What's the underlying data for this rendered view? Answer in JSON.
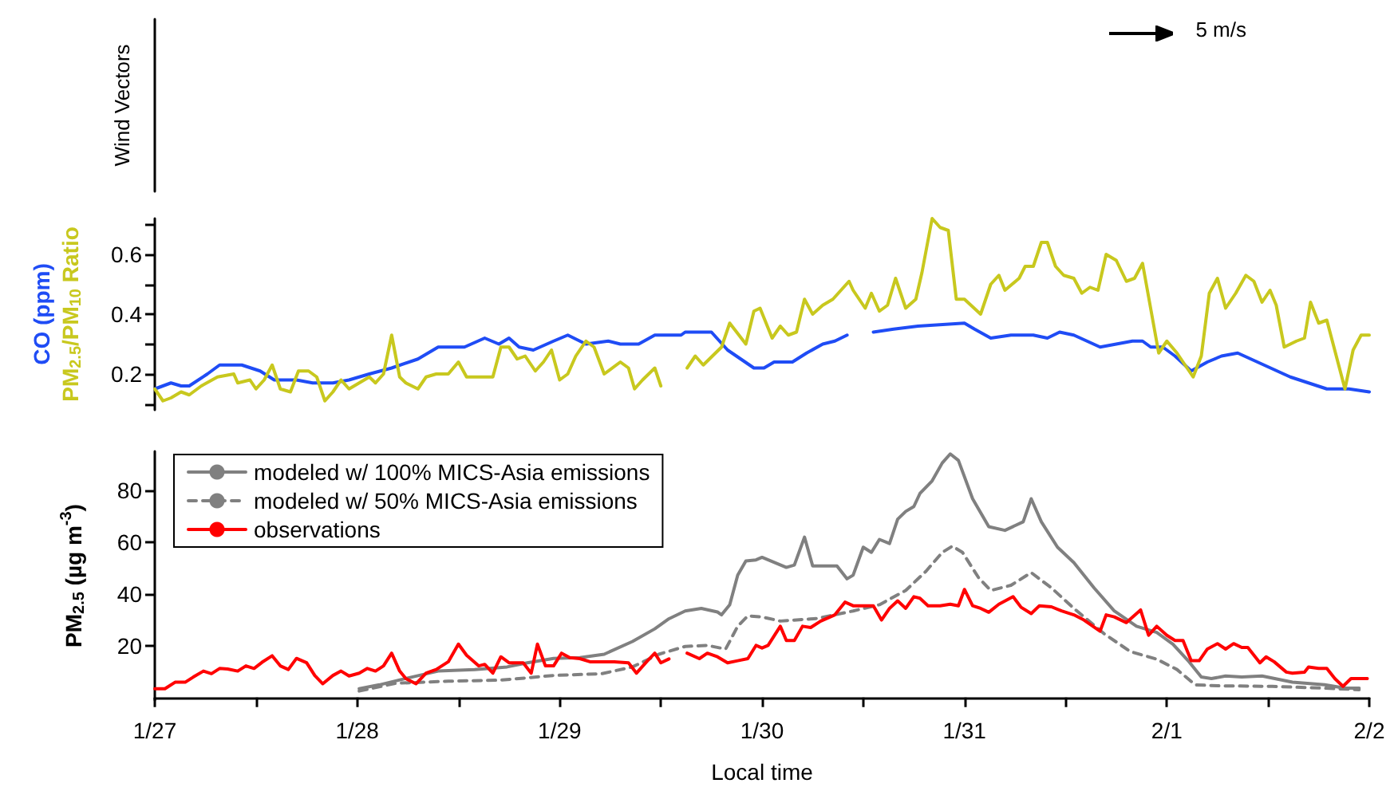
{
  "chart_data": [
    {
      "type": "other",
      "ylabel": "Wind Vectors",
      "annotations": [
        "5 m/s"
      ]
    },
    {
      "type": "line",
      "xlim": [
        "--01-27",
        "--02-02"
      ],
      "ylim": [
        0.08,
        0.72
      ],
      "tick_labels": "y",
      "xticks": [
        {
          "value": "--01-27",
          "label": "1/27"
        },
        {
          "value": "--01-28",
          "label": "1/28"
        },
        {
          "value": "--01-29",
          "label": "1/29"
        },
        {
          "value": "--01-30",
          "label": "1/30"
        },
        {
          "value": "--01-31",
          "label": "1/31"
        },
        {
          "value": "--02-01",
          "label": "2/1"
        },
        {
          "value": "--02-02",
          "label": "2/2"
        }
      ],
      "yticks": [
        {
          "value": 0.1,
          "label": null
        },
        0.2,
        {
          "value": 0.3,
          "label": null
        },
        0.4,
        {
          "value": 0.5,
          "label": null
        },
        0.6,
        {
          "value": 0.7,
          "label": null
        }
      ],
      "series": [
        {
          "name": "CO (ppm)",
          "color": "#1f4cf5",
          "x": [
            "--01-27T00:00",
            "--01-27T01:55",
            "--01-27T03:07",
            "--01-27T04:05",
            "--01-27T06:14",
            "--01-27T07:41",
            "--01-27T10:19",
            "--01-27T12:29",
            "--01-27T14:10",
            "--01-27T16:48",
            "--01-27T18:43",
            "--01-27T21:07",
            "--01-27T23:02",
            "--01-28T01:26",
            "--01-28T04:05",
            "--01-28T07:12",
            "--01-28T09:36",
            "--01-28T12:43",
            "--01-28T15:07",
            "--01-28T16:48",
            "--01-28T18:00",
            "--01-28T19:12",
            "--01-28T20:53",
            "--01-28T23:17",
            "--01-29T00:58",
            "--01-29T03:07",
            "--01-29T05:46",
            "--01-29T07:12",
            "--01-29T09:22",
            "--01-29T11:17",
            "--01-29T14:24",
            "--01-29T14:53",
            "--01-29T18:00",
            "--01-29T19:55",
            "--01-29T23:02",
            "--01-30T00:14",
            "--01-30T01:26",
            "--01-30T03:36",
            "--01-30T05:17",
            "--01-30T07:12",
            "--01-30T08:38",
            "--01-30T10:05",
            "--01-30T11:31",
            "--01-30T13:12",
            "--01-30T15:36",
            "--01-30T18:29",
            "--01-31T00:00",
            "--01-31T01:12",
            "--01-31T03:07",
            "--01-31T05:31",
            "--01-31T08:10",
            "--01-31T09:50",
            "--01-31T11:17",
            "--01-31T12:58",
            "--01-31T16:05",
            "--01-31T18:00",
            "--01-31T19:55",
            "--01-31T21:07",
            "--01-31T22:05",
            "--01-31T23:31",
            "--02-01T00:58",
            "--02-01T02:53",
            "--02-01T04:48",
            "--02-01T06:29",
            "--02-01T08:24",
            "--02-01T11:31",
            "--02-01T14:38",
            "--02-01T18:58",
            "--02-01T21:36",
            "--02-02T00:00"
          ],
          "values": [
            0.15,
            0.17,
            0.16,
            0.16,
            0.2,
            0.23,
            0.23,
            0.21,
            0.18,
            0.18,
            0.17,
            0.17,
            0.18,
            0.2,
            0.22,
            0.25,
            0.29,
            0.29,
            0.32,
            0.3,
            0.32,
            0.29,
            0.28,
            0.31,
            0.33,
            0.3,
            0.31,
            0.3,
            0.3,
            0.33,
            0.33,
            0.34,
            0.34,
            0.28,
            0.22,
            0.22,
            0.24,
            0.24,
            0.27,
            0.3,
            0.31,
            0.33,
            null,
            0.34,
            0.35,
            0.36,
            0.37,
            0.35,
            0.32,
            0.33,
            0.33,
            0.32,
            0.34,
            0.33,
            0.29,
            0.3,
            0.31,
            0.31,
            0.29,
            0.29,
            0.26,
            0.21,
            0.24,
            0.26,
            0.27,
            0.23,
            0.19,
            0.15,
            0.15,
            0.14
          ]
        },
        {
          "name": "PM$_{2.5}$/PM$_{10}$ Ratio",
          "color": "#c8c81e",
          "x": [
            "--01-27T00:00",
            "--01-27T00:58",
            "--01-27T01:55",
            "--01-27T03:07",
            "--01-27T04:05",
            "--01-27T05:31",
            "--01-27T07:26",
            "--01-27T09:22",
            "--01-27T09:50",
            "--01-27T11:17",
            "--01-27T12:00",
            "--01-27T12:58",
            "--01-27T13:55",
            "--01-27T14:53",
            "--01-27T16:05",
            "--01-27T17:02",
            "--01-27T18:14",
            "--01-27T19:12",
            "--01-27T20:10",
            "--01-27T21:07",
            "--01-27T22:05",
            "--01-27T23:02",
            "--01-28T00:14",
            "--01-28T01:26",
            "--01-28T02:10",
            "--01-28T03:07",
            "--01-28T04:05",
            "--01-28T05:02",
            "--01-28T05:46",
            "--01-28T07:12",
            "--01-28T08:10",
            "--01-28T09:22",
            "--01-28T10:48",
            "--01-28T12:00",
            "--01-28T12:58",
            "--01-28T14:24",
            "--01-28T15:07",
            "--01-28T16:05",
            "--01-28T17:02",
            "--01-28T18:00",
            "--01-28T18:58",
            "--01-28T19:55",
            "--01-28T21:07",
            "--01-28T22:05",
            "--01-28T23:02",
            "--01-29T00:00",
            "--01-29T00:58",
            "--01-29T01:55",
            "--01-29T03:07",
            "--01-29T04:05",
            "--01-29T05:17",
            "--01-29T07:12",
            "--01-29T08:10",
            "--01-29T08:53",
            "--01-29T09:50",
            "--01-29T11:17",
            "--01-29T12:00",
            "--01-29T13:41",
            "--01-29T15:07",
            "--01-29T16:05",
            "--01-29T17:02",
            "--01-29T19:12",
            "--01-29T20:10",
            "--01-29T22:05",
            "--01-29T23:02",
            "--01-29T23:46",
            "--01-30T01:12",
            "--01-30T02:10",
            "--01-30T03:07",
            "--01-30T04:05",
            "--01-30T05:02",
            "--01-30T06:00",
            "--01-30T07:12",
            "--01-30T08:24",
            "--01-30T10:19",
            "--01-30T10:48",
            "--01-30T12:14",
            "--01-30T12:58",
            "--01-30T13:55",
            "--01-30T14:53",
            "--01-30T15:50",
            "--01-30T17:02",
            "--01-30T18:14",
            "--01-30T18:58",
            "--01-30T20:10",
            "--01-30T21:07",
            "--01-30T22:05",
            "--01-30T23:02",
            "--01-31T00:00",
            "--01-31T01:55",
            "--01-31T03:07",
            "--01-31T04:05",
            "--01-31T04:48",
            "--01-31T06:29",
            "--01-31T07:12",
            "--01-31T08:10",
            "--01-31T09:07",
            "--01-31T09:50",
            "--01-31T10:48",
            "--01-31T11:46",
            "--01-31T12:58",
            "--01-31T13:55",
            "--01-31T14:53",
            "--01-31T15:50",
            "--01-31T16:48",
            "--01-31T18:00",
            "--01-31T19:12",
            "--01-31T20:10",
            "--01-31T21:07",
            "--01-31T23:02",
            "--02-01T00:00",
            "--02-01T01:12",
            "--02-01T03:07",
            "--02-01T04:05",
            "--02-01T05:02",
            "--02-01T06:00",
            "--02-01T06:58",
            "--02-01T08:10",
            "--02-01T09:22",
            "--02-01T10:19",
            "--02-01T11:17",
            "--02-01T12:14",
            "--02-01T12:58",
            "--02-01T13:55",
            "--02-01T15:22",
            "--02-01T16:19",
            "--02-01T17:02",
            "--02-01T18:00",
            "--02-01T18:58",
            "--02-01T21:07",
            "--02-01T22:05",
            "--02-01T23:02",
            "--02-02T00:00"
          ],
          "values": [
            0.15,
            0.11,
            0.12,
            0.14,
            0.13,
            0.16,
            0.19,
            0.2,
            0.17,
            0.18,
            0.15,
            0.18,
            0.23,
            0.15,
            0.14,
            0.21,
            0.21,
            0.19,
            0.11,
            0.14,
            0.18,
            0.15,
            0.17,
            0.19,
            0.17,
            0.2,
            0.33,
            0.19,
            0.17,
            0.15,
            0.19,
            0.2,
            0.2,
            0.24,
            0.19,
            0.19,
            0.19,
            0.19,
            0.29,
            0.29,
            0.25,
            0.26,
            0.21,
            0.24,
            0.28,
            0.18,
            0.2,
            0.26,
            0.31,
            0.29,
            0.2,
            0.24,
            0.22,
            0.15,
            0.18,
            0.22,
            0.16,
            null,
            0.22,
            0.26,
            0.23,
            0.29,
            0.37,
            0.3,
            0.41,
            0.42,
            0.32,
            0.36,
            0.33,
            0.34,
            0.45,
            0.4,
            0.43,
            0.45,
            0.51,
            0.48,
            0.42,
            0.47,
            0.41,
            0.43,
            0.52,
            0.42,
            0.45,
            0.54,
            0.72,
            0.69,
            0.68,
            0.45,
            0.45,
            0.4,
            0.5,
            0.53,
            0.48,
            0.52,
            0.56,
            0.56,
            0.64,
            0.64,
            0.56,
            0.53,
            0.52,
            0.47,
            0.49,
            0.48,
            0.6,
            0.58,
            0.51,
            0.52,
            0.57,
            0.27,
            0.31,
            0.27,
            0.19,
            0.26,
            0.47,
            0.52,
            0.42,
            0.47,
            0.53,
            0.51,
            0.44,
            0.48,
            0.43,
            0.29,
            0.31,
            0.32,
            0.44,
            0.37,
            0.38,
            0.15,
            0.28,
            0.33,
            0.33
          ]
        }
      ]
    },
    {
      "type": "line",
      "xlabel": "Local time",
      "ylabel": "PM$_{2.5}$ (µg m$^{-3}$)",
      "xlim": [
        "--01-27",
        "--02-02"
      ],
      "ylim": [
        -1,
        95
      ],
      "xticks": [
        {
          "value": "--01-27",
          "label": "1/27"
        },
        {
          "value": "--01-27T12:00",
          "label": null
        },
        {
          "value": "--01-28",
          "label": "1/28"
        },
        {
          "value": "--01-28T12:00",
          "label": null
        },
        {
          "value": "--01-29",
          "label": "1/29"
        },
        {
          "value": "--01-29T12:00",
          "label": null
        },
        {
          "value": "--01-30",
          "label": "1/30"
        },
        {
          "value": "--01-30T12:00",
          "label": null
        },
        {
          "value": "--01-31",
          "label": "1/31"
        },
        {
          "value": "--01-31T12:00",
          "label": null
        },
        {
          "value": "--02-01",
          "label": "2/1"
        },
        {
          "value": "--02-01T12:00",
          "label": null
        },
        {
          "value": "--02-02",
          "label": "2/2"
        }
      ],
      "yticks": [
        20,
        40,
        60,
        80
      ],
      "legend": "top left",
      "series": [
        {
          "name": "modeled w/ 100% MICS-Asia emissions",
          "color": "#808080",
          "line_style": "solid",
          "x": [
            "--01-28T00:14",
            "--01-28T02:38",
            "--01-28T06:29",
            "--01-28T09:36",
            "--01-28T13:55",
            "--01-28T17:46",
            "--01-28T20:10",
            "--01-28T23:17",
            "--01-29T02:24",
            "--01-29T05:17",
            "--01-29T08:38",
            "--01-29T11:17",
            "--01-29T12:58",
            "--01-29T14:53",
            "--01-29T16:48",
            "--01-29T18:43",
            "--01-29T19:12",
            "--01-29T20:10",
            "--01-29T21:07",
            "--01-29T22:05",
            "--01-29T23:17",
            "--01-30T00:00",
            "--01-30T02:53",
            "--01-30T03:50",
            "--01-30T05:02",
            "--01-30T06:00",
            "--01-30T08:53",
            "--01-30T10:05",
            "--01-30T10:48",
            "--01-30T12:00",
            "--01-30T12:58",
            "--01-30T13:55",
            "--01-30T15:07",
            "--01-30T16:05",
            "--01-30T17:02",
            "--01-30T18:00",
            "--01-30T18:43",
            "--01-30T20:10",
            "--01-30T21:22",
            "--01-30T22:19",
            "--01-30T23:17",
            "--01-31T00:58",
            "--01-31T02:53",
            "--01-31T04:48",
            "--01-31T06:58",
            "--01-31T07:55",
            "--01-31T09:07",
            "--01-31T11:02",
            "--01-31T12:58",
            "--01-31T15:22",
            "--01-31T17:46",
            "--01-31T20:24",
            "--01-31T22:48",
            "--02-01T00:43",
            "--02-01T02:38",
            "--02-01T04:05",
            "--02-01T05:17",
            "--02-01T06:58",
            "--02-01T08:53",
            "--02-01T11:17",
            "--02-01T14:53",
            "--02-01T18:43",
            "--02-01T21:07",
            "--02-01T22:48"
          ],
          "values": [
            3.4,
            4.9,
            7.9,
            10.2,
            10.8,
            11.8,
            13.4,
            15.1,
            15.4,
            16.7,
            21.6,
            26.5,
            30.4,
            33.4,
            34.4,
            33,
            31.9,
            35.8,
            47.2,
            52.7,
            53.1,
            54.1,
            50.2,
            51.1,
            61.9,
            50.8,
            50.8,
            45.8,
            47.2,
            58,
            56,
            61,
            59.4,
            68.8,
            71.8,
            73.7,
            78.7,
            83.6,
            90.5,
            94,
            91.5,
            76.7,
            65.9,
            64.5,
            67.8,
            76.7,
            67.8,
            58,
            52.1,
            42.3,
            33.4,
            27.5,
            25.1,
            20.6,
            13.8,
            7.9,
            7.3,
            8.3,
            7.9,
            8.3,
            5.9,
            4.9,
            3.6,
            3.6
          ]
        },
        {
          "name": "modeled w/ 50% MICS-Asia emissions",
          "color": "#808080",
          "line_style": "dashed",
          "x": [
            "--01-28T00:14",
            "--01-28T04:34",
            "--01-28T10:48",
            "--01-28T17:02",
            "--01-28T23:17",
            "--01-29T05:02",
            "--01-29T08:38",
            "--01-29T11:46",
            "--01-29T14:53",
            "--01-29T17:31",
            "--01-29T19:41",
            "--01-29T21:07",
            "--01-29T22:19",
            "--01-30T00:00",
            "--01-30T02:10",
            "--01-30T06:29",
            "--01-30T10:48",
            "--01-30T13:55",
            "--01-30T17:02",
            "--01-30T19:26",
            "--01-30T21:22",
            "--01-30T22:34",
            "--01-30T23:46",
            "--01-31T01:41",
            "--01-31T03:07",
            "--01-31T05:31",
            "--01-31T07:55",
            "--01-31T10:19",
            "--01-31T12:58",
            "--01-31T16:34",
            "--01-31T19:41",
            "--01-31T22:48",
            "--02-01T01:12",
            "--02-01T03:22",
            "--02-01T06:14",
            "--02-01T12:29",
            "--02-01T18:43",
            "--02-01T22:48"
          ],
          "values": [
            2.5,
            5.5,
            6.3,
            6.7,
            8.5,
            9.2,
            11.8,
            16.7,
            19.7,
            20.1,
            18.7,
            27.5,
            31.5,
            31.1,
            29.5,
            30.5,
            33.4,
            35.8,
            41.3,
            48.7,
            56,
            58.4,
            56,
            46.2,
            41.3,
            43.3,
            48.2,
            42.3,
            34.4,
            24.6,
            17.7,
            14.8,
            10.8,
            4.9,
            4.5,
            4.3,
            3.6,
            3.0
          ]
        },
        {
          "name": "observations",
          "color": "#ff0000",
          "line_style": "solid",
          "x": [
            "--01-27T00:00",
            "--01-27T01:12",
            "--01-27T02:24",
            "--01-27T03:36",
            "--01-27T04:34",
            "--01-27T05:46",
            "--01-27T06:43",
            "--01-27T07:41",
            "--01-27T08:38",
            "--01-27T09:50",
            "--01-27T10:48",
            "--01-27T11:46",
            "--01-27T12:43",
            "--01-27T13:55",
            "--01-27T14:53",
            "--01-27T15:50",
            "--01-27T16:48",
            "--01-27T18:00",
            "--01-27T18:58",
            "--01-27T19:55",
            "--01-27T21:07",
            "--01-27T22:05",
            "--01-27T23:02",
            "--01-28T00:14",
            "--01-28T01:12",
            "--01-28T02:10",
            "--01-28T03:07",
            "--01-28T04:05",
            "--01-28T05:02",
            "--01-28T05:46",
            "--01-28T06:58",
            "--01-28T08:10",
            "--01-28T09:22",
            "--01-28T10:48",
            "--01-28T12:00",
            "--01-28T12:58",
            "--01-28T14:24",
            "--01-28T15:07",
            "--01-28T16:05",
            "--01-28T17:02",
            "--01-28T18:00",
            "--01-28T19:41",
            "--01-28T20:38",
            "--01-28T21:22",
            "--01-28T22:19",
            "--01-28T23:17",
            "--01-29T00:14",
            "--01-29T01:12",
            "--01-29T02:24",
            "--01-29T03:36",
            "--01-29T05:02",
            "--01-29T06:29",
            "--01-29T08:10",
            "--01-29T09:07",
            "--01-29T10:19",
            "--01-29T11:17",
            "--01-29T12:00",
            "--01-29T12:58",
            "--01-29T13:55",
            "--01-29T15:07",
            "--01-29T16:34",
            "--01-29T17:31",
            "--01-29T18:43",
            "--01-29T19:55",
            "--01-29T21:07",
            "--01-29T22:19",
            "--01-29T23:17",
            "--01-30T00:00",
            "--01-30T00:43",
            "--01-30T02:10",
            "--01-30T02:53",
            "--01-30T03:50",
            "--01-30T04:48",
            "--01-30T05:46",
            "--01-30T06:58",
            "--01-30T08:38",
            "--01-30T09:50",
            "--01-30T10:48",
            "--01-30T12:14",
            "--01-30T13:12",
            "--01-30T14:10",
            "--01-30T15:07",
            "--01-30T16:05",
            "--01-30T17:02",
            "--01-30T18:00",
            "--01-30T18:43",
            "--01-30T19:41",
            "--01-30T21:07",
            "--01-30T22:19",
            "--01-30T23:17",
            "--01-31T00:00",
            "--01-31T00:58",
            "--01-31T01:55",
            "--01-31T02:53",
            "--01-31T04:05",
            "--01-31T05:46",
            "--01-31T06:43",
            "--01-31T07:55",
            "--01-31T08:53",
            "--01-31T10:19",
            "--01-31T11:31",
            "--01-31T12:58",
            "--01-31T14:10",
            "--01-31T16:05",
            "--01-31T16:48",
            "--01-31T17:46",
            "--01-31T19:12",
            "--01-31T20:53",
            "--01-31T21:50",
            "--01-31T22:48",
            "--02-01T00:00",
            "--02-01T00:58",
            "--02-01T01:55",
            "--02-01T02:53",
            "--02-01T03:50",
            "--02-01T04:48",
            "--02-01T06:00",
            "--02-01T06:58",
            "--02-01T07:55",
            "--02-01T08:53",
            "--02-01T09:36",
            "--02-01T11:02",
            "--02-01T11:46",
            "--02-01T12:43",
            "--02-01T14:10",
            "--02-01T14:53",
            "--02-01T16:19",
            "--02-01T16:48",
            "--02-01T18:00",
            "--02-01T18:58",
            "--02-01T19:55",
            "--02-01T20:53",
            "--02-01T21:50",
            "--02-01T23:46"
          ],
          "values": [
            3.4,
            3.4,
            5.9,
            5.9,
            7.9,
            10.2,
            9.2,
            11.2,
            11,
            10.2,
            12.2,
            11.2,
            13.6,
            16.1,
            12.2,
            10.8,
            15.1,
            13.4,
            8.5,
            5.3,
            8.5,
            10.2,
            8.3,
            9.4,
            11.2,
            10.2,
            12.2,
            17.1,
            10.2,
            7.3,
            5.3,
            9.4,
            10.8,
            13.8,
            20.6,
            16.3,
            12.2,
            12.8,
            9.4,
            15.7,
            13.4,
            13.4,
            9.4,
            20.6,
            12.2,
            12.2,
            17.1,
            15.4,
            15,
            13.8,
            13.8,
            13.8,
            13.4,
            9.4,
            13.8,
            17.1,
            13.4,
            14.9,
            null,
            17.1,
            15,
            17.1,
            15.7,
            13.4,
            14.2,
            15,
            20.1,
            19.1,
            20.1,
            27.5,
            22,
            22,
            27.5,
            27,
            29.5,
            31.9,
            36.8,
            35.4,
            35.4,
            35.4,
            29.9,
            34.4,
            37.3,
            34.4,
            38.9,
            38.3,
            35.4,
            35.4,
            36,
            35.4,
            41.7,
            35.4,
            34.4,
            32.9,
            36,
            38.9,
            34.8,
            32.4,
            35.4,
            35,
            33.4,
            31.9,
            29.9,
            25.6,
            31.9,
            31.1,
            28.9,
            33.8,
            24,
            27.5,
            24,
            22,
            22,
            14.2,
            14.2,
            18.7,
            20.8,
            18.7,
            20.8,
            19.3,
            19.3,
            13.4,
            15.7,
            13.8,
            9.8,
            9.4,
            9.8,
            11.8,
            11.2,
            11.2,
            7.3,
            4.3,
            7.3,
            7.3
          ]
        }
      ]
    }
  ]
}
